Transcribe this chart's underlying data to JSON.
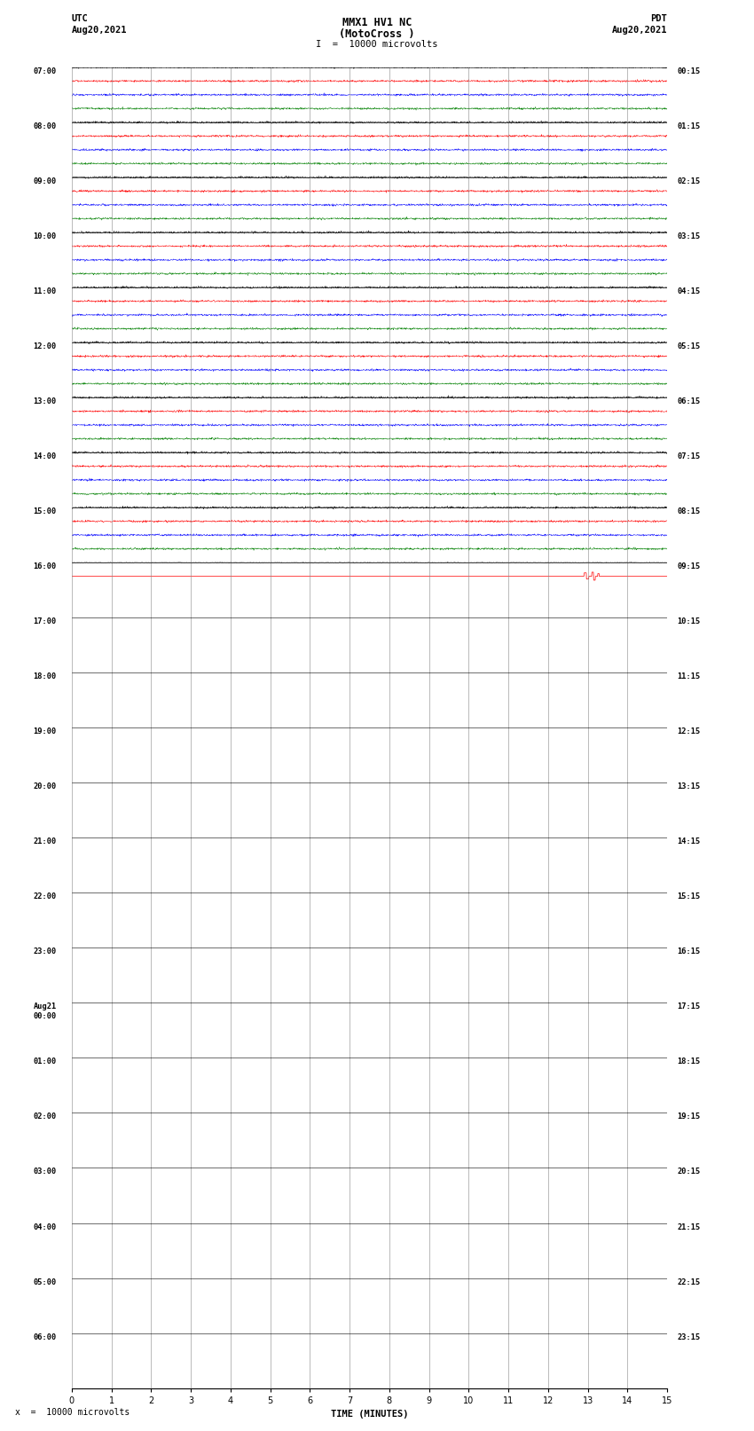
{
  "title_line1": "MMX1 HV1 NC",
  "title_line2": "(MotoCross )",
  "scale_label": "I  =  10000 microvolts",
  "footer_label": "x  =  10000 microvolts",
  "utc_label": "UTC",
  "utc_date": "Aug20,2021",
  "pdt_label": "PDT",
  "pdt_date": "Aug20,2021",
  "xlabel": "TIME (MINUTES)",
  "xmin": 0,
  "xmax": 15,
  "colors": [
    "black",
    "red",
    "blue",
    "green"
  ],
  "n_groups": 24,
  "active_groups": 9,
  "traces_per_group": 4,
  "trace_amplitude": 0.035,
  "fig_width": 8.5,
  "fig_height": 16.13,
  "dpi": 100,
  "background_color": "white",
  "utc_times": [
    "07:00",
    "08:00",
    "09:00",
    "10:00",
    "11:00",
    "12:00",
    "13:00",
    "14:00",
    "15:00",
    "16:00",
    "17:00",
    "18:00",
    "19:00",
    "20:00",
    "21:00",
    "22:00",
    "23:00",
    "Aug21\n00:00",
    "01:00",
    "02:00",
    "03:00",
    "04:00",
    "05:00",
    "06:00"
  ],
  "pdt_times": [
    "00:15",
    "01:15",
    "02:15",
    "03:15",
    "04:15",
    "05:15",
    "06:15",
    "07:15",
    "08:15",
    "09:15",
    "10:15",
    "11:15",
    "12:15",
    "13:15",
    "14:15",
    "15:15",
    "16:15",
    "17:15",
    "18:15",
    "19:15",
    "20:15",
    "21:15",
    "22:15",
    "23:15"
  ]
}
